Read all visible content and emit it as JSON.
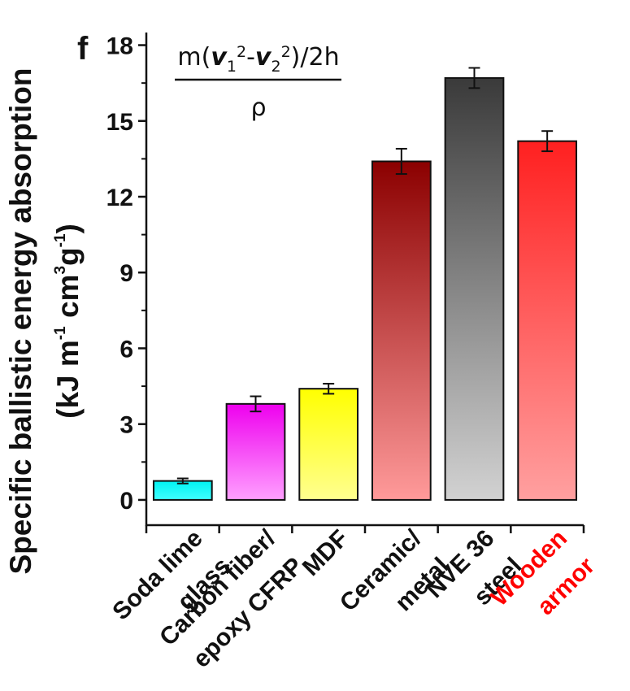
{
  "chart_data": {
    "type": "bar",
    "panel_label": "f",
    "ylabel_line1": "Specific ballistic energy absorption",
    "ylabel_line2_parts": [
      "(kJ m",
      "-1",
      " cm",
      "3",
      "g",
      "-1",
      ")"
    ],
    "ylim": [
      -1,
      18.5
    ],
    "yticks": [
      0,
      3,
      6,
      9,
      12,
      15,
      18
    ],
    "grid": false,
    "formula": {
      "numerator_parts": [
        "m(",
        "v",
        "1",
        "2",
        "-",
        "v",
        "2",
        "2",
        ")/2h"
      ],
      "denominator": "ρ"
    },
    "categories": [
      {
        "lines": [
          "Soda lime",
          "glass"
        ],
        "highlight": false
      },
      {
        "lines": [
          "Carbon fiber/",
          "epoxy CFRP"
        ],
        "highlight": false
      },
      {
        "lines": [
          "MDF"
        ],
        "highlight": false
      },
      {
        "lines": [
          "Ceramic/",
          "metal"
        ],
        "highlight": false
      },
      {
        "lines": [
          "NVE 36",
          "steel"
        ],
        "highlight": false
      },
      {
        "lines": [
          "Wooden",
          "armor"
        ],
        "highlight": true
      }
    ],
    "values": [
      0.75,
      3.8,
      4.4,
      13.4,
      16.7,
      14.2
    ],
    "errors": [
      0.1,
      0.3,
      0.2,
      0.5,
      0.4,
      0.4
    ],
    "colors": [
      {
        "top": "#00f2f2",
        "bottom": "#40ffff"
      },
      {
        "top": "#ee00ee",
        "bottom": "#ffa0ff"
      },
      {
        "top": "#ffff00",
        "bottom": "#ffff90"
      },
      {
        "top": "#8b0000",
        "bottom": "#ff9a9a"
      },
      {
        "top": "#3a3a3a",
        "bottom": "#d2d2d2"
      },
      {
        "top": "#ff2020",
        "bottom": "#ffa0a0"
      }
    ],
    "highlight_color": "#ff0000"
  }
}
